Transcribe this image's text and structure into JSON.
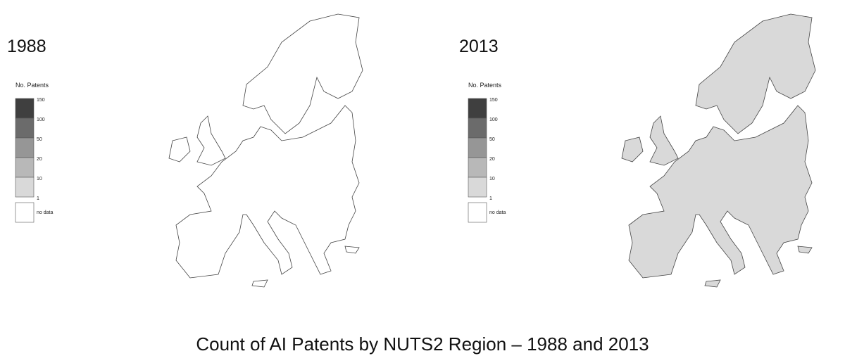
{
  "caption": "Count of AI Patents by NUTS2 Region – 1988 and 2013",
  "maps": [
    {
      "year": "1988",
      "legend": {
        "title": "No. Patents",
        "breaks": [
          150,
          100,
          50,
          20,
          10,
          1
        ],
        "no_data": "no data"
      }
    },
    {
      "year": "2013",
      "legend": {
        "title": "No. Patents",
        "breaks": [
          150,
          100,
          50,
          20,
          10,
          1
        ],
        "no_data": "no data"
      }
    }
  ]
}
